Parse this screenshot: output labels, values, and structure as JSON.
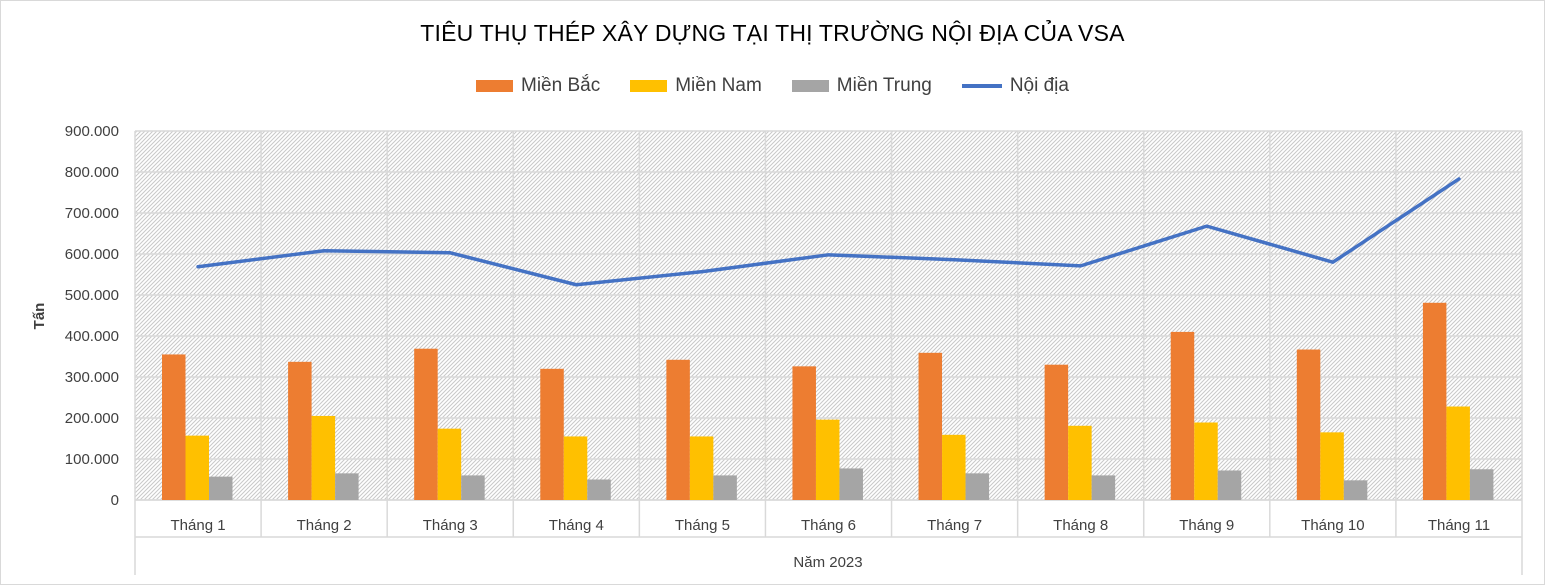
{
  "chart_data": {
    "type": "bar",
    "title": "TIÊU THỤ THÉP XÂY DỰNG TẠI THỊ TRƯỜNG NỘI ĐỊA CỦA VSA",
    "ylabel": "Tấn",
    "xlabel": "Năm 2023",
    "ylim": [
      0,
      900000
    ],
    "yticks": [
      0,
      100000,
      200000,
      300000,
      400000,
      500000,
      600000,
      700000,
      800000,
      900000
    ],
    "ytick_labels": [
      "0",
      "100.000",
      "200.000",
      "300.000",
      "400.000",
      "500.000",
      "600.000",
      "700.000",
      "800.000",
      "900.000"
    ],
    "categories": [
      "Tháng 1",
      "Tháng 2",
      "Tháng 3",
      "Tháng 4",
      "Tháng 5",
      "Tháng 6",
      "Tháng 7",
      "Tháng 8",
      "Tháng 9",
      "Tháng 10",
      "Tháng 11"
    ],
    "grid": true,
    "legend_position": "top",
    "series": [
      {
        "name": "Miền Bắc",
        "kind": "bar",
        "color": "#ED7D31",
        "values": [
          355000,
          337000,
          369000,
          320000,
          342000,
          326000,
          359000,
          330000,
          410000,
          367000,
          481000
        ]
      },
      {
        "name": "Miền Nam",
        "kind": "bar",
        "color": "#FFC000",
        "values": [
          157000,
          205000,
          174000,
          155000,
          155000,
          196000,
          159000,
          181000,
          189000,
          165000,
          228000
        ]
      },
      {
        "name": "Miền Trung",
        "kind": "bar",
        "color": "#A5A5A5",
        "values": [
          57000,
          65000,
          60000,
          50000,
          60000,
          77000,
          65000,
          60000,
          72000,
          48000,
          75000
        ]
      },
      {
        "name": "Nội địa",
        "kind": "line",
        "color": "#4472C4",
        "values": [
          569000,
          608000,
          603000,
          525000,
          557000,
          598000,
          586000,
          571000,
          668000,
          580000,
          783000
        ]
      }
    ]
  }
}
